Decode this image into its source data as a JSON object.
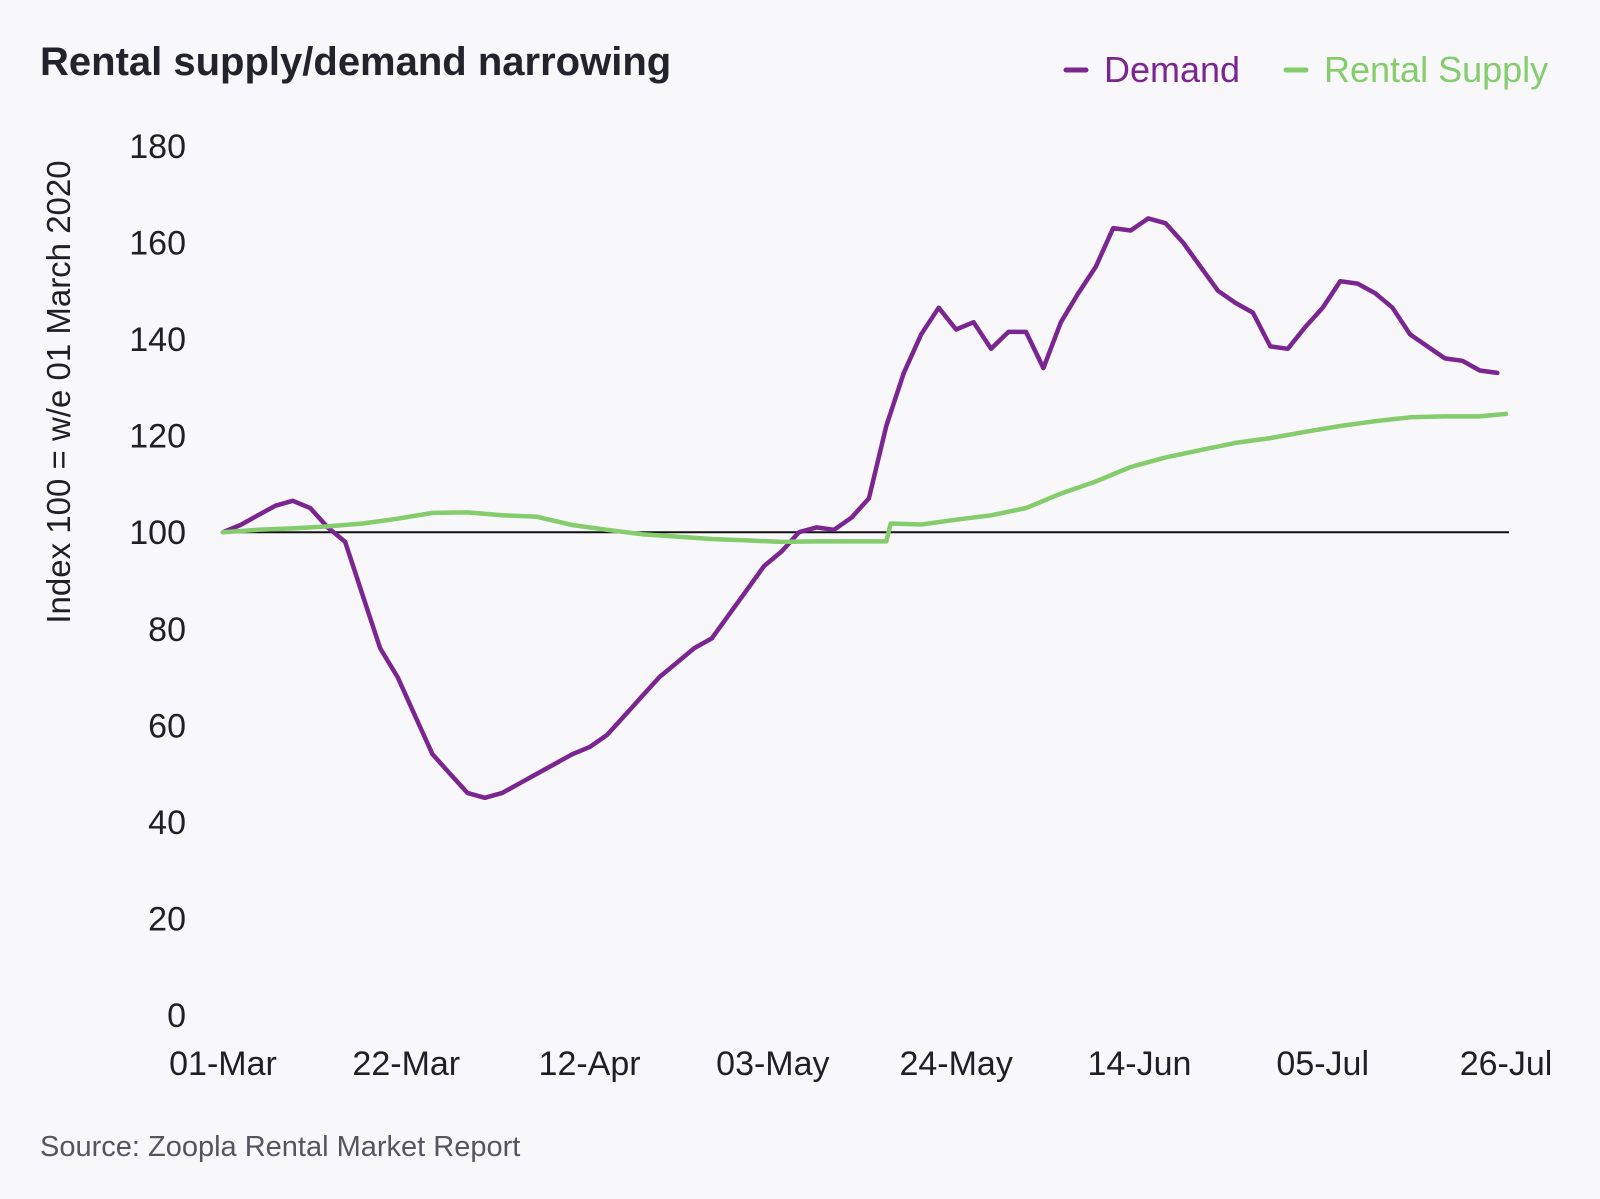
{
  "chart_data": {
    "type": "line",
    "title": "Rental supply/demand narrowing",
    "ylabel": "Index 100 = w/e 01 March 2020",
    "xlabel": "",
    "source": "Source: Zoopla Rental Market Report",
    "ylim": [
      0,
      180
    ],
    "yticks": [
      "0",
      "20",
      "40",
      "60",
      "80",
      "100",
      "120",
      "140",
      "160",
      "180"
    ],
    "xticks": [
      "01-Mar",
      "22-Mar",
      "12-Apr",
      "03-May",
      "24-May",
      "14-Jun",
      "05-Jul",
      "26-Jul"
    ],
    "xlim_days": [
      0,
      147
    ],
    "reference_line": 100,
    "legend_position": "top-right",
    "series": [
      {
        "name": "Demand",
        "color": "#7b2591",
        "x": [
          0,
          2,
          4,
          6,
          8,
          10,
          12,
          14,
          16,
          18,
          20,
          22,
          24,
          26,
          28,
          30,
          32,
          34,
          36,
          38,
          40,
          42,
          44,
          46,
          48,
          50,
          52,
          54,
          56,
          58,
          60,
          62,
          64,
          66,
          68,
          70,
          72,
          74,
          76,
          78,
          80,
          82,
          84,
          86,
          88,
          90,
          92,
          94,
          96,
          98,
          100,
          102,
          104,
          106,
          108,
          110,
          112,
          114,
          116,
          118,
          120,
          122,
          124,
          126,
          128,
          130,
          132,
          134,
          136,
          138,
          140,
          142,
          144,
          146
        ],
        "y": [
          100,
          101.5,
          103.5,
          105.5,
          106.5,
          105,
          101,
          98,
          87,
          76,
          70,
          62,
          54,
          50,
          46,
          45,
          46,
          48,
          50,
          52,
          54,
          55.5,
          58,
          62,
          66,
          70,
          73,
          76,
          78,
          83,
          88,
          93,
          96,
          100,
          101,
          100.5,
          103,
          107,
          122,
          133,
          141,
          146.5,
          142,
          143.5,
          138,
          141.5,
          141.5,
          134,
          143.5,
          149.5,
          155,
          163,
          162.5,
          165,
          164,
          160,
          155,
          150,
          147.5,
          145.5,
          138.5,
          138,
          142.5,
          146.5,
          152,
          151.5,
          149.5,
          146.5,
          141,
          138.5,
          136,
          135.5,
          133.5,
          133
        ]
      },
      {
        "name": "Rental Supply",
        "color": "#84cc6c",
        "x": [
          0,
          4,
          8,
          12,
          16,
          20,
          24,
          28,
          32,
          36,
          40,
          44,
          48,
          52,
          56,
          60,
          64,
          68,
          72,
          76,
          76.5,
          80,
          84,
          88,
          92,
          96,
          100,
          104,
          108,
          112,
          116,
          120,
          124,
          128,
          132,
          136,
          140,
          144,
          147
        ],
        "y": [
          100,
          100.5,
          100.8,
          101.2,
          101.8,
          102.8,
          104.0,
          104.1,
          103.5,
          103.2,
          101.5,
          100.5,
          99.6,
          99.1,
          98.6,
          98.3,
          98.0,
          98.1,
          98.1,
          98.1,
          101.8,
          101.6,
          102.6,
          103.5,
          105.0,
          108.0,
          110.5,
          113.5,
          115.5,
          117.0,
          118.5,
          119.5,
          120.8,
          122.0,
          123.0,
          123.8,
          124.0,
          124.0,
          124.5
        ]
      }
    ]
  }
}
